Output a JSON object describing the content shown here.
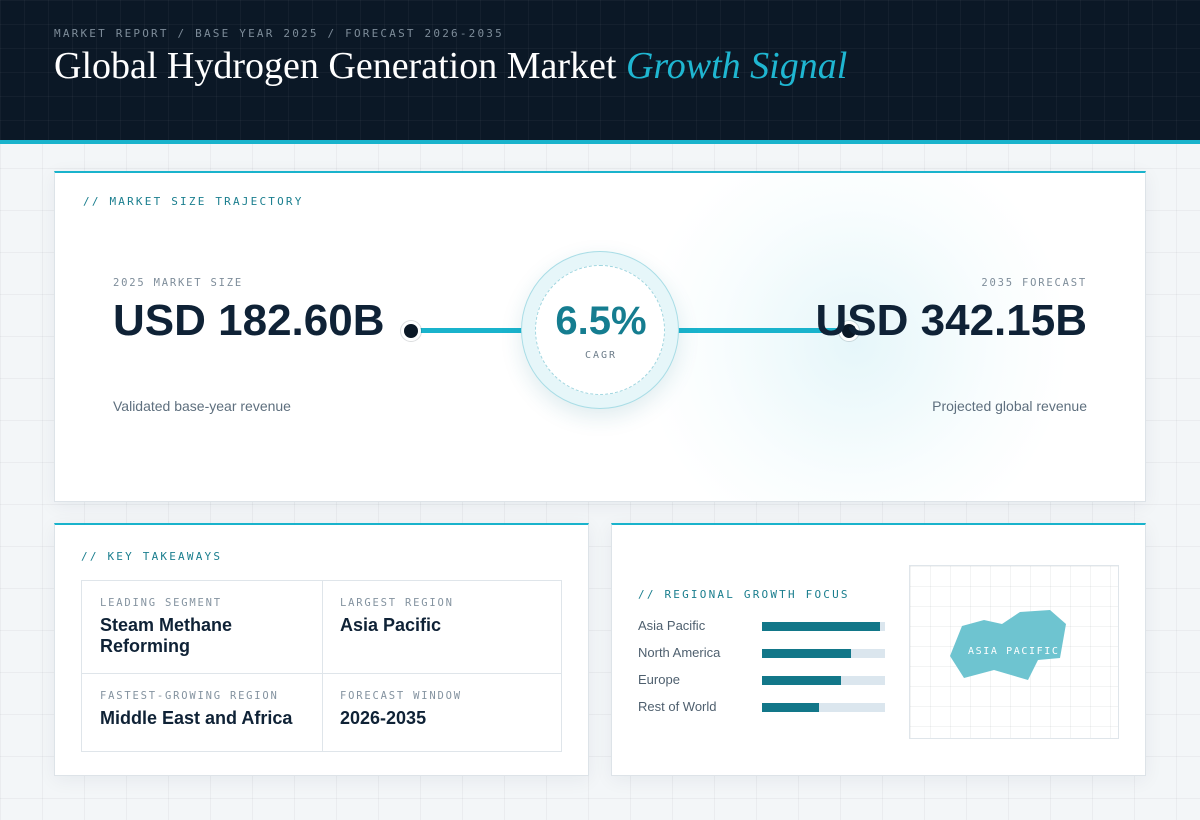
{
  "header": {
    "eyebrow": "MARKET REPORT / BASE YEAR 2025 / FORECAST 2026-2035",
    "title_main": "Global Hydrogen Generation Market",
    "title_accent": "Growth Signal"
  },
  "trajectory": {
    "label": "// MARKET SIZE TRAJECTORY",
    "base": {
      "label": "2025 MARKET SIZE",
      "value": "USD 182.60B",
      "sub": "Validated base-year revenue"
    },
    "cagr": {
      "value": "6.5%",
      "label": "CAGR"
    },
    "forecast": {
      "label": "2035 FORECAST",
      "value": "USD 342.15B",
      "sub": "Projected global revenue"
    }
  },
  "takeaways": {
    "label": "// KEY TAKEAWAYS",
    "items": [
      {
        "key": "LEADING SEGMENT",
        "value": "Steam Methane Reforming"
      },
      {
        "key": "LARGEST REGION",
        "value": "Asia Pacific"
      },
      {
        "key": "FASTEST-GROWING REGION",
        "value": "Middle East and Africa"
      },
      {
        "key": "FORECAST WINDOW",
        "value": "2026-2035"
      }
    ]
  },
  "regional": {
    "label": "// REGIONAL GROWTH FOCUS",
    "bars": [
      {
        "name": "Asia Pacific",
        "share": 0.96
      },
      {
        "name": "North America",
        "share": 0.72
      },
      {
        "name": "Europe",
        "share": 0.64
      },
      {
        "name": "Rest of World",
        "share": 0.46
      }
    ],
    "map_label": "ASIA PACIFIC"
  },
  "colors": {
    "accent": "#19b3cc",
    "header_bg": "#0b1826",
    "bar_fill": "#127789",
    "map_region": "#6ec4d0"
  }
}
